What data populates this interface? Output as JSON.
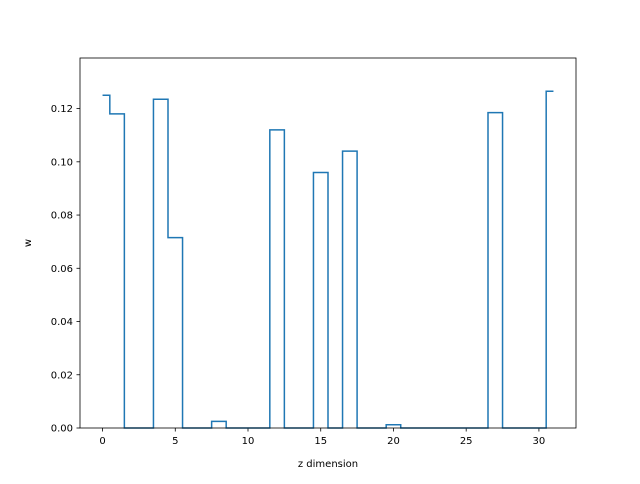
{
  "chart_data": {
    "type": "line",
    "drawstyle": "steps-mid",
    "title": "",
    "xlabel": "z dimension",
    "ylabel": "w",
    "xlim": [
      -1.55,
      32.55
    ],
    "ylim": [
      0,
      0.139
    ],
    "xticks": [
      0,
      5,
      10,
      15,
      20,
      25,
      30
    ],
    "xtick_labels": [
      "0",
      "5",
      "10",
      "15",
      "20",
      "25",
      "30"
    ],
    "yticks": [
      0.0,
      0.02,
      0.04,
      0.06,
      0.08,
      0.1,
      0.12
    ],
    "ytick_labels": [
      "0.00",
      "0.02",
      "0.04",
      "0.06",
      "0.08",
      "0.10",
      "0.12"
    ],
    "grid": false,
    "line_color": "#1f77b4",
    "series": [
      {
        "x": [
          0,
          1,
          2,
          3,
          4,
          5,
          6,
          7,
          8,
          9,
          10,
          11,
          12,
          13,
          14,
          15,
          16,
          17,
          18,
          19,
          20,
          21,
          22,
          23,
          24,
          25,
          26,
          27,
          28,
          29,
          30,
          31
        ],
        "values": [
          0.125,
          0.118,
          0,
          0,
          0.1235,
          0.0715,
          0,
          0,
          0.0025,
          0,
          0,
          0,
          0.112,
          0,
          0,
          0.096,
          0,
          0.104,
          0,
          0,
          0.0012,
          0,
          0,
          0,
          0,
          0,
          0,
          0.1185,
          0,
          0,
          0,
          0.1265
        ]
      }
    ]
  }
}
